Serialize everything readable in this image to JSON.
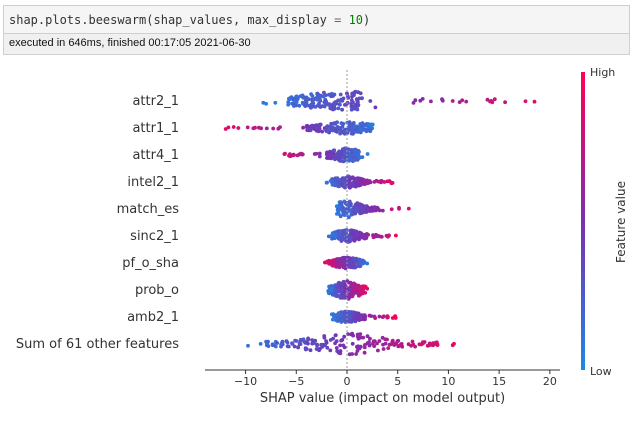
{
  "cell": {
    "code": {
      "fn": "shap.plots.beeswarm(shap_values, max_display ",
      "op": "=",
      "num": "10",
      "close": ")"
    },
    "status": "executed in 646ms, finished 00:17:05 2021-06-30"
  },
  "colors": {
    "low": "#1e88e5",
    "high": "#ff0052",
    "mid": "#7c2fb0"
  },
  "chart_data": {
    "type": "scatter",
    "subtype": "beeswarm",
    "xlabel": "SHAP value (impact on model output)",
    "xlim": [
      -14,
      21
    ],
    "xticks": [
      -10,
      -5,
      0,
      5,
      10,
      15,
      20
    ],
    "zero_line": true,
    "colorbar": {
      "label": "Feature value",
      "high": "High",
      "low": "Low"
    },
    "features": [
      {
        "name": "attr2_1",
        "min": -8.3,
        "max": 19.3,
        "core": [
          -5.8,
          1.4
        ],
        "spread": 0.85,
        "trend": 1
      },
      {
        "name": "attr1_1",
        "min": -12.5,
        "max": 3.3,
        "core": [
          -4.0,
          2.5
        ],
        "spread": 0.55,
        "trend": -1
      },
      {
        "name": "attr4_1",
        "min": -7.2,
        "max": 2.2,
        "core": [
          -2.0,
          1.2
        ],
        "spread": 0.6,
        "trend": -1
      },
      {
        "name": "intel2_1",
        "min": -2.6,
        "max": 4.8,
        "core": [
          -1.5,
          1.8
        ],
        "spread": 0.55,
        "trend": 1
      },
      {
        "name": "match_es",
        "min": -1.3,
        "max": 6.3,
        "core": [
          -1.0,
          3.0
        ],
        "spread": 0.75,
        "trend": 1
      },
      {
        "name": "sinc2_1",
        "min": -2.0,
        "max": 5.0,
        "core": [
          -1.5,
          2.0
        ],
        "spread": 0.55,
        "trend": 1
      },
      {
        "name": "pf_o_sha",
        "min": -2.4,
        "max": 2.0,
        "core": [
          -1.6,
          1.6
        ],
        "spread": 0.5,
        "trend": -1
      },
      {
        "name": "prob_o",
        "min": -2.0,
        "max": 2.0,
        "core": [
          -1.8,
          1.8
        ],
        "spread": 0.8,
        "trend": 1
      },
      {
        "name": "amb2_1",
        "min": -1.5,
        "max": 4.8,
        "core": [
          -1.2,
          1.8
        ],
        "spread": 0.5,
        "trend": 1
      },
      {
        "name": "Sum of 61 other features",
        "min": -10.5,
        "max": 10.8,
        "core": [
          -8.0,
          9.0
        ],
        "spread": 0.95,
        "trend": 1
      }
    ]
  }
}
